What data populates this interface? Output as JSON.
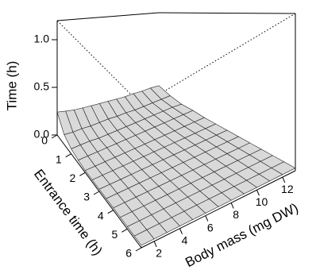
{
  "chart_data": {
    "type": "surface",
    "x_label": "Body mass (mg DW)",
    "y_label": "Entrance time (h)",
    "z_label": "Time (h)",
    "x": [
      1,
      2,
      3,
      4,
      5,
      6,
      7,
      8,
      9,
      10,
      11,
      12,
      13
    ],
    "y": [
      0,
      0.5,
      1,
      1.5,
      2,
      2.5,
      3,
      3.5,
      4,
      4.5,
      5,
      5.5,
      6
    ],
    "z": [
      [
        0.24,
        0.22,
        0.2,
        0.19,
        0.18,
        0.17,
        0.16,
        0.15,
        0.14,
        0.14,
        0.13,
        0.13,
        0.12
      ],
      [
        0.1,
        0.09,
        0.09,
        0.08,
        0.08,
        0.08,
        0.07,
        0.07,
        0.06,
        0.06,
        0.06,
        0.06,
        0.06
      ],
      [
        0.05,
        0.05,
        0.05,
        0.04,
        0.04,
        0.04,
        0.04,
        0.04,
        0.04,
        0.04,
        0.04,
        0.04,
        0.03
      ],
      [
        0.03,
        0.03,
        0.03,
        0.03,
        0.03,
        0.03,
        0.03,
        0.03,
        0.03,
        0.03,
        0.03,
        0.03,
        0.03
      ],
      [
        0.02,
        0.02,
        0.02,
        0.02,
        0.02,
        0.02,
        0.02,
        0.02,
        0.02,
        0.02,
        0.02,
        0.02,
        0.02
      ],
      [
        0.02,
        0.02,
        0.02,
        0.02,
        0.02,
        0.02,
        0.02,
        0.02,
        0.02,
        0.02,
        0.02,
        0.02,
        0.02
      ],
      [
        0.02,
        0.02,
        0.02,
        0.02,
        0.02,
        0.02,
        0.02,
        0.02,
        0.02,
        0.02,
        0.02,
        0.02,
        0.02
      ],
      [
        0.02,
        0.02,
        0.02,
        0.02,
        0.02,
        0.02,
        0.02,
        0.02,
        0.02,
        0.02,
        0.02,
        0.02,
        0.02
      ],
      [
        0.02,
        0.02,
        0.02,
        0.02,
        0.02,
        0.02,
        0.02,
        0.02,
        0.02,
        0.02,
        0.02,
        0.02,
        0.02
      ],
      [
        0.02,
        0.02,
        0.02,
        0.02,
        0.02,
        0.02,
        0.02,
        0.02,
        0.02,
        0.02,
        0.02,
        0.02,
        0.02
      ],
      [
        0.02,
        0.02,
        0.02,
        0.02,
        0.02,
        0.02,
        0.02,
        0.02,
        0.02,
        0.02,
        0.02,
        0.02,
        0.02
      ],
      [
        0.02,
        0.02,
        0.02,
        0.02,
        0.02,
        0.02,
        0.02,
        0.02,
        0.02,
        0.02,
        0.02,
        0.02,
        0.02
      ],
      [
        0.02,
        0.02,
        0.02,
        0.02,
        0.02,
        0.02,
        0.02,
        0.02,
        0.02,
        0.02,
        0.02,
        0.02,
        0.02
      ]
    ],
    "xlim": [
      1,
      13
    ],
    "ylim": [
      0,
      6
    ],
    "zlim": [
      0,
      1.2
    ],
    "xticks": [
      2,
      4,
      6,
      8,
      10,
      12
    ],
    "yticks": [
      0,
      1,
      2,
      3,
      4,
      5,
      6
    ],
    "zticks": [
      {
        "value": 0,
        "label": "0.0"
      },
      {
        "value": 0.5,
        "label": "0.5"
      },
      {
        "value": 1,
        "label": "1.0"
      }
    ],
    "color": "#d9d9d9"
  }
}
